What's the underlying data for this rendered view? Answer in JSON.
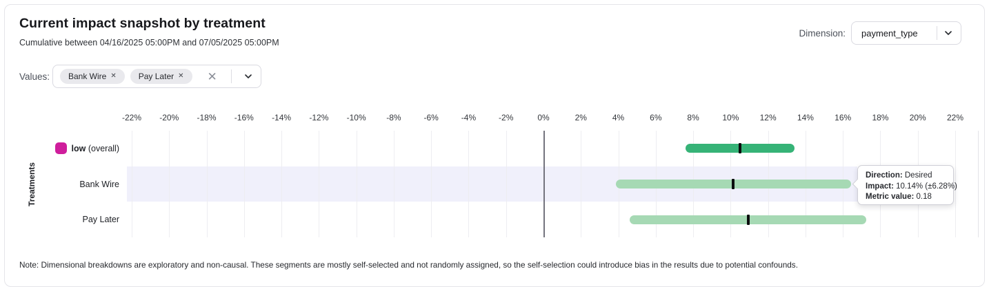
{
  "header": {
    "title": "Current impact snapshot by treatment",
    "subtitle": "Cumulative between 04/16/2025 05:00PM and 07/05/2025 05:00PM",
    "dimension_label": "Dimension:",
    "dimension_value": "payment_type"
  },
  "filters": {
    "values_label": "Values:",
    "chips": [
      {
        "label": "Bank Wire",
        "remove_icon": "✕"
      },
      {
        "label": "Pay Later",
        "remove_icon": "✕"
      }
    ],
    "clear_icon": "✕"
  },
  "chart_data": {
    "type": "bar",
    "subtype": "horizontal-confidence-interval",
    "ylabel": "Treatments",
    "axis": {
      "min": -22,
      "max": 22,
      "step": 2,
      "unit": "%"
    },
    "grid": true,
    "colors": {
      "overall_bar": "#36b377",
      "segment_bar": "#a6d9b4",
      "marker": "#0c0d0e",
      "legend_swatch": "#cf1e9c",
      "highlight_band": "#f0f0fb"
    },
    "rows": [
      {
        "name_bold": "low",
        "name_suffix": " (overall)",
        "swatch": "#cf1e9c",
        "low": 7.6,
        "high": 13.4,
        "center": 10.5,
        "color": "#36b377",
        "highlighted": false
      },
      {
        "name": "Bank Wire",
        "low": 3.86,
        "high": 16.42,
        "center": 10.14,
        "color": "#a6d9b4",
        "highlighted": true
      },
      {
        "name": "Pay Later",
        "low": 4.6,
        "high": 17.25,
        "center": 10.94,
        "color": "#a6d9b4",
        "highlighted": false
      }
    ]
  },
  "tooltip": {
    "rows": [
      {
        "label": "Direction:",
        "value": "Desired"
      },
      {
        "label": "Impact:",
        "value": "10.14% (±6.28%)"
      },
      {
        "label": "Metric value:",
        "value": "0.18"
      }
    ]
  },
  "note": "Note: Dimensional breakdowns are exploratory and non-causal. These segments are mostly self-selected and not randomly assigned, so the self-selection could introduce bias in the results due to potential confounds."
}
